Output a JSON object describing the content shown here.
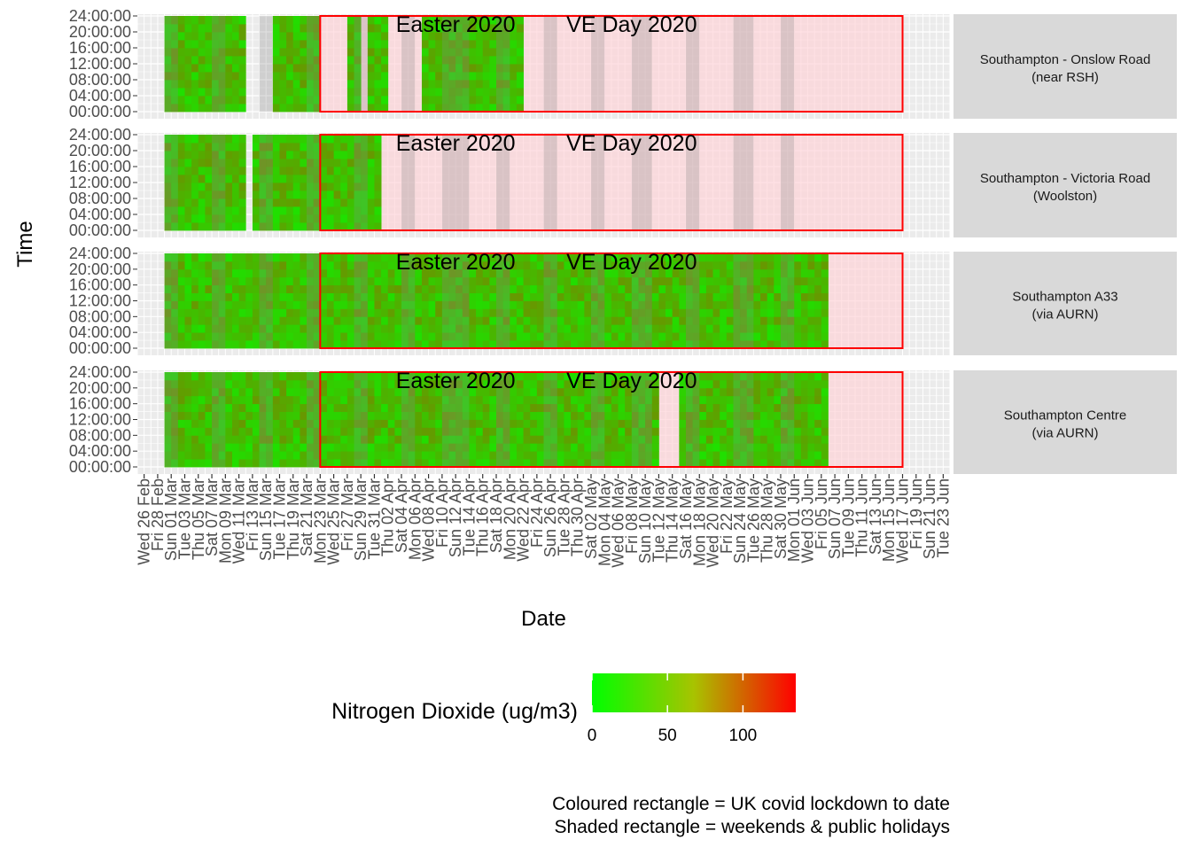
{
  "chart_data": {
    "type": "heatmap",
    "xlabel": "Date",
    "ylabel": "Time",
    "x_date_range": [
      "2020-02-25",
      "2020-06-24"
    ],
    "y_range_hours": [
      0,
      24
    ],
    "y_ticks": [
      "00:00:00",
      "04:00:00",
      "08:00:00",
      "12:00:00",
      "16:00:00",
      "20:00:00",
      "24:00:00"
    ],
    "x_ticks": [
      "Wed 26 Feb",
      "Fri 28 Feb",
      "Sun 01 Mar",
      "Tue 03 Mar",
      "Thu 05 Mar",
      "Sat 07 Mar",
      "Mon 09 Mar",
      "Wed 11 Mar",
      "Fri 13 Mar",
      "Sun 15 Mar",
      "Tue 17 Mar",
      "Thu 19 Mar",
      "Sat 21 Mar",
      "Mon 23 Mar",
      "Wed 25 Mar",
      "Fri 27 Mar",
      "Sun 29 Mar",
      "Tue 31 Mar",
      "Thu 02 Apr",
      "Sat 04 Apr",
      "Mon 06 Apr",
      "Wed 08 Apr",
      "Fri 10 Apr",
      "Sun 12 Apr",
      "Tue 14 Apr",
      "Thu 16 Apr",
      "Sat 18 Apr",
      "Mon 20 Apr",
      "Wed 22 Apr",
      "Fri 24 Apr",
      "Sun 26 Apr",
      "Tue 28 Apr",
      "Thu 30 Apr",
      "Sat 02 May",
      "Mon 04 May",
      "Wed 06 May",
      "Fri 08 May",
      "Sun 10 May",
      "Tue 12 May",
      "Thu 14 May",
      "Sat 16 May",
      "Mon 18 May",
      "Wed 20 May",
      "Fri 22 May",
      "Sun 24 May",
      "Tue 26 May",
      "Thu 28 May",
      "Sat 30 May",
      "Mon 01 Jun",
      "Wed 03 Jun",
      "Fri 05 Jun",
      "Sun 07 Jun",
      "Tue 09 Jun",
      "Thu 11 Jun",
      "Sat 13 Jun",
      "Mon 15 Jun",
      "Wed 17 Jun",
      "Fri 19 Jun",
      "Sun 21 Jun",
      "Tue 23 Jun"
    ],
    "tick_start_date": "2020-02-26",
    "tick_step_days": 2,
    "grid": true,
    "lockdown_period": [
      "2020-03-23",
      "2020-06-17"
    ],
    "shaded_days": [
      "2020-02-29",
      "2020-03-01",
      "2020-03-07",
      "2020-03-08",
      "2020-03-14",
      "2020-03-15",
      "2020-03-21",
      "2020-03-22",
      "2020-03-28",
      "2020-03-29",
      "2020-04-04",
      "2020-04-05",
      "2020-04-10",
      "2020-04-11",
      "2020-04-12",
      "2020-04-13",
      "2020-04-18",
      "2020-04-19",
      "2020-04-25",
      "2020-04-26",
      "2020-05-02",
      "2020-05-03",
      "2020-05-08",
      "2020-05-09",
      "2020-05-10",
      "2020-05-16",
      "2020-05-17",
      "2020-05-23",
      "2020-05-24",
      "2020-05-25",
      "2020-05-30",
      "2020-05-31"
    ],
    "annotations": [
      {
        "text": "Easter 2020",
        "date": "2020-04-12"
      },
      {
        "text": "VE Day 2020",
        "date": "2020-05-08"
      }
    ],
    "facets": [
      {
        "line1": "Southampton - Onslow Road",
        "line2": "(near RSH)",
        "data_start": "2020-02-29",
        "data_end": "2020-04-21",
        "missing": [
          [
            "2020-03-12",
            "2020-03-15"
          ],
          [
            "2020-03-23",
            "2020-03-26"
          ],
          [
            "2020-03-29",
            "2020-03-29"
          ],
          [
            "2020-04-02",
            "2020-04-06"
          ]
        ]
      },
      {
        "line1": "Southampton - Victoria Road",
        "line2": "(Woolston)",
        "data_start": "2020-02-29",
        "data_end": "2020-03-31",
        "missing": [
          [
            "2020-03-12",
            "2020-03-12"
          ]
        ]
      },
      {
        "line1": "Southampton A33",
        "line2": "(via AURN)",
        "data_start": "2020-02-29",
        "data_end": "2020-06-05",
        "missing": []
      },
      {
        "line1": "Southampton Centre",
        "line2": "(via AURN)",
        "data_start": "2020-02-29",
        "data_end": "2020-06-05",
        "missing": [
          [
            "2020-05-12",
            "2020-05-14"
          ]
        ]
      }
    ],
    "colorbar": {
      "title": "Nitrogen Dioxide (ug/m3)",
      "min": 0,
      "max": 135,
      "ticks": [
        0,
        50,
        100
      ],
      "colors": [
        "#00ff00",
        "#ff0000"
      ]
    },
    "typical_no2_range": [
      10,
      60
    ]
  },
  "footer": {
    "line1": "Coloured rectangle = UK covid lockdown to date",
    "line2": "Shaded rectangle = weekends & public holidays"
  }
}
